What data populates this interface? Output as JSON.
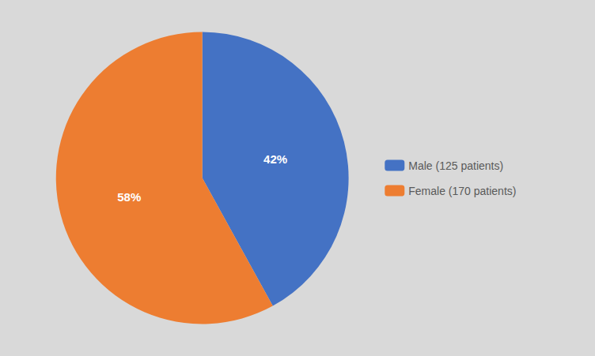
{
  "chart_data": {
    "type": "pie",
    "categories": [
      "Male (125 patients)",
      "Female (170 patients)"
    ],
    "values": [
      42,
      58
    ],
    "value_labels": [
      "42%",
      "58%"
    ],
    "colors": [
      "#4472C4",
      "#ED7D31"
    ],
    "data_labels": true,
    "legend": "right"
  }
}
